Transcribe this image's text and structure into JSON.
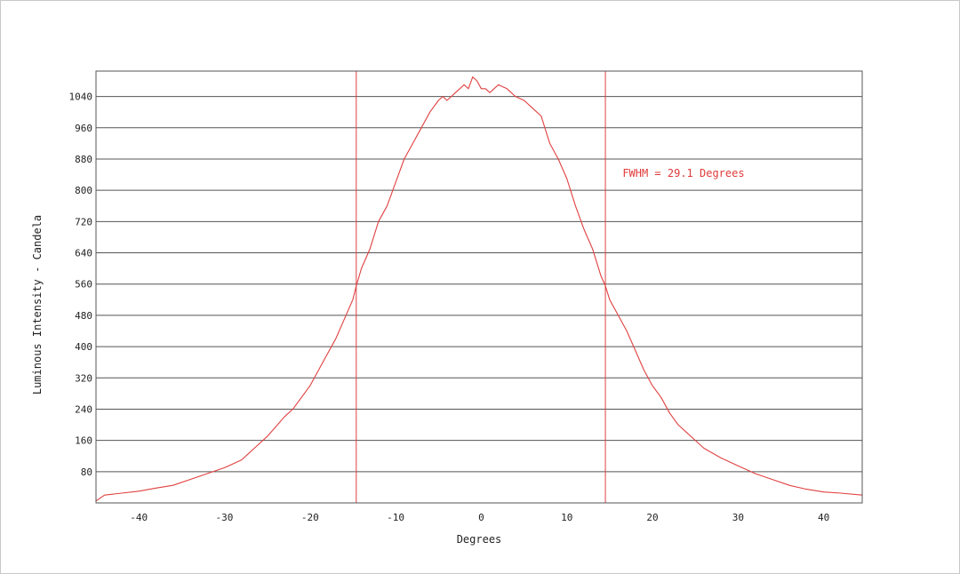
{
  "chart_data": {
    "type": "line",
    "title": "",
    "xlabel": "Degrees",
    "ylabel": "Luminous Intensity - Candela",
    "xlim": [
      -45,
      44.5
    ],
    "ylim": [
      0,
      1105
    ],
    "x_ticks": [
      -40,
      -30,
      -20,
      -10,
      0,
      10,
      20,
      30,
      40
    ],
    "x_tick_labels": [
      "-40",
      "-30",
      "-20",
      "-10",
      "0",
      "10",
      "20",
      "30",
      "40"
    ],
    "y_ticks": [
      80,
      160,
      240,
      320,
      400,
      480,
      560,
      640,
      720,
      800,
      880,
      960,
      1040
    ],
    "y_tick_labels": [
      "80",
      "160",
      "240",
      "320",
      "400",
      "480",
      "560",
      "640",
      "720",
      "800",
      "880",
      "960",
      "1040"
    ],
    "grid": {
      "horizontal": true,
      "vertical": false
    },
    "colors": {
      "line": "#e04040",
      "grid": "#555555",
      "frame": "#555555",
      "annotation": "#e03a3a"
    },
    "vertical_markers": [
      -14.6,
      14.5
    ],
    "annotation": {
      "text": "FWHM = 29.1 Degrees",
      "x": 16.5,
      "y": 835
    },
    "series": [
      {
        "x": [
          -45,
          -44,
          -42,
          -40,
          -38,
          -36,
          -34,
          -32,
          -30,
          -28,
          -27,
          -26,
          -25,
          -24,
          -23,
          -22,
          -21,
          -20,
          -19,
          -18,
          -17,
          -16,
          -15,
          -14.6,
          -14,
          -13,
          -12,
          -11,
          -10,
          -9,
          -8,
          -7,
          -6,
          -5,
          -4.5,
          -4,
          -3.5,
          -3,
          -2.5,
          -2,
          -1.5,
          -1,
          -0.5,
          0,
          0.5,
          1,
          1.5,
          2,
          2.5,
          3,
          3.5,
          4,
          5,
          6,
          7,
          8,
          9,
          10,
          11,
          12,
          13,
          14,
          14.5,
          15,
          16,
          17,
          18,
          19,
          20,
          21,
          22,
          23,
          24,
          25,
          26,
          28,
          30,
          32,
          34,
          36,
          38,
          40,
          42,
          44.5
        ],
        "y": [
          5,
          20,
          25,
          30,
          38,
          45,
          60,
          75,
          90,
          110,
          130,
          150,
          170,
          195,
          220,
          240,
          270,
          300,
          340,
          380,
          420,
          470,
          520,
          555,
          600,
          650,
          720,
          760,
          820,
          880,
          920,
          960,
          1000,
          1030,
          1040,
          1030,
          1040,
          1050,
          1060,
          1070,
          1060,
          1090,
          1080,
          1060,
          1060,
          1050,
          1060,
          1070,
          1065,
          1060,
          1050,
          1040,
          1030,
          1010,
          990,
          920,
          880,
          830,
          760,
          700,
          650,
          580,
          555,
          520,
          480,
          440,
          390,
          340,
          300,
          270,
          230,
          200,
          180,
          160,
          140,
          115,
          95,
          75,
          60,
          45,
          35,
          28,
          25,
          20
        ]
      }
    ]
  }
}
